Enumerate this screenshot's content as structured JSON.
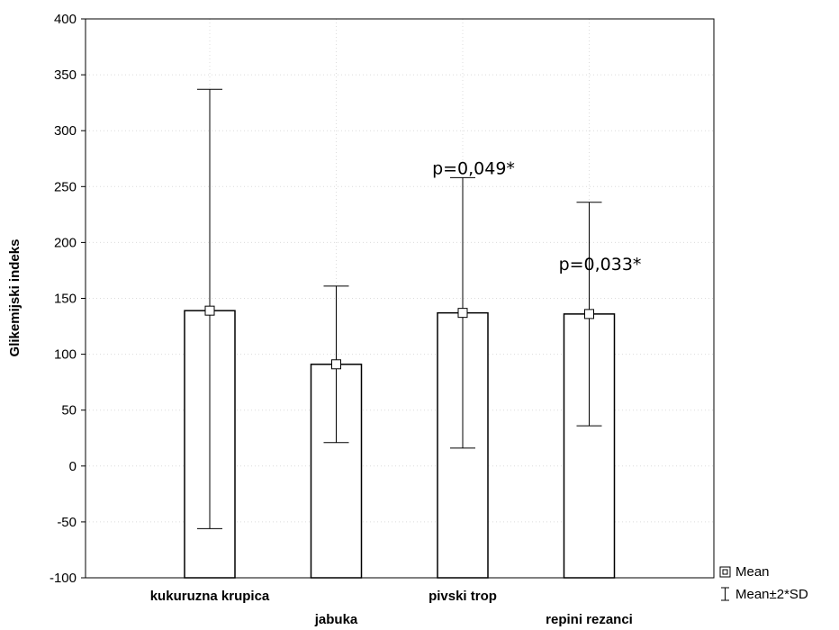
{
  "chart_data": {
    "type": "bar",
    "ylabel": "Glikemijski indeks",
    "ylim": [
      -100,
      400
    ],
    "yticks": [
      "400",
      "350",
      "300",
      "250",
      "200",
      "150",
      "100",
      "50",
      "0",
      "-50",
      "-100"
    ],
    "ytick_values": [
      400,
      350,
      300,
      250,
      200,
      150,
      100,
      50,
      0,
      -50,
      -100
    ],
    "grid": true,
    "categories": [
      "kukuruzna krupica",
      "jabuka",
      "pivski trop",
      "repini rezanci"
    ],
    "label_row": [
      "top",
      "bottom",
      "top",
      "bottom"
    ],
    "series": [
      {
        "values": [
          139,
          91,
          137,
          136
        ],
        "lower": [
          -56,
          21,
          16,
          36
        ],
        "upper": [
          337,
          161,
          258,
          236
        ]
      }
    ],
    "annotations": [
      {
        "text": "p=0,049*",
        "category": "pivski trop",
        "y": 258
      },
      {
        "text": "p=0,033*",
        "category": "repini rezanci",
        "y": 172
      }
    ],
    "legend": {
      "placement": "bottom-right",
      "items": [
        {
          "label": "Mean",
          "marker": "square"
        },
        {
          "label": "Mean±2*SD",
          "marker": "whisker"
        }
      ]
    }
  }
}
